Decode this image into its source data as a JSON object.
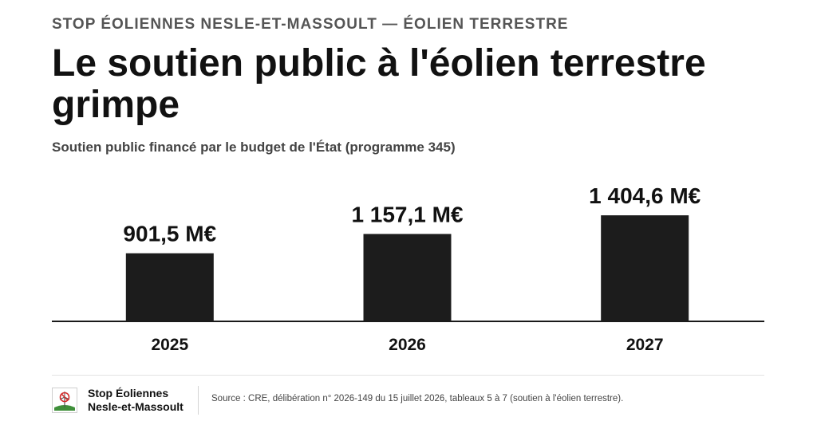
{
  "header": {
    "kicker": "STOP ÉOLIENNES NESLE-ET-MASSOULT — ÉOLIEN TERRESTRE",
    "title": "Le soutien public à l'éolien terrestre grimpe",
    "subtitle": "Soutien public financé par le budget de l'État (programme 345)"
  },
  "chart_data": {
    "type": "bar",
    "title": "Le soutien public à l'éolien terrestre grimpe",
    "subtitle": "Soutien public financé par le budget de l'État (programme 345)",
    "categories": [
      "2025",
      "2026",
      "2027"
    ],
    "values": [
      901.5,
      1157.1,
      1404.6
    ],
    "value_labels": [
      "901,5 M€",
      "1 157,1 M€",
      "1 404,6 M€"
    ],
    "unit": "M€",
    "xlabel": "",
    "ylabel": "",
    "ylim": [
      0,
      1404.6
    ],
    "grid": false,
    "legend": "none",
    "bar_color": "#1c1c1c"
  },
  "footer": {
    "org_line1": "Stop Éoliennes",
    "org_line2": "Nesle-et-Massoult",
    "logo_icon": "wind-turbine-logo-icon",
    "source": "Source : CRE, délibération n° 2026-149 du 15 juillet 2026, tableaux 5 à 7 (soutien à l'éolien terrestre)."
  }
}
